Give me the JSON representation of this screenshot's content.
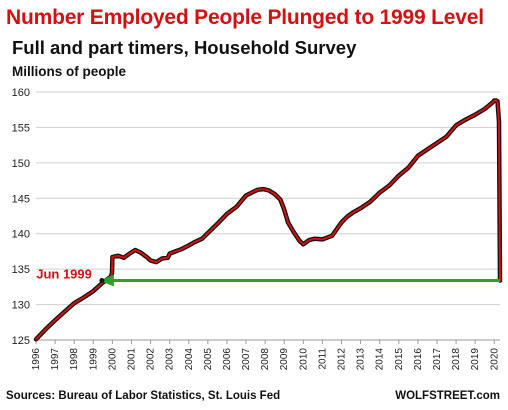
{
  "chart_data": {
    "type": "line",
    "title": "Number Employed People Plunged to 1999 Level",
    "subtitle": "Full and part timers, Household Survey",
    "ylabel": "Millions of people",
    "xlabel": "",
    "ylim": [
      125,
      160
    ],
    "xlim": [
      1996,
      2020.3
    ],
    "yticks": [
      125,
      130,
      135,
      140,
      145,
      150,
      155,
      160
    ],
    "xticks": [
      "1996",
      "1997",
      "1998",
      "1999",
      "2000",
      "2001",
      "2002",
      "2003",
      "2004",
      "2005",
      "2006",
      "2007",
      "2008",
      "2009",
      "2010",
      "2011",
      "2012",
      "2013",
      "2014",
      "2015",
      "2016",
      "2017",
      "2018",
      "2019",
      "2020"
    ],
    "grid": true,
    "series": [
      {
        "color": "#d41010",
        "x": [
          1996.0,
          1996.5,
          1997.0,
          1997.5,
          1998.0,
          1998.5,
          1999.0,
          1999.45,
          1999.9,
          1999.98,
          2000.0,
          2000.3,
          2000.6,
          2000.9,
          2001.2,
          2001.5,
          2001.8,
          2002.0,
          2002.3,
          2002.6,
          2002.9,
          2003.0,
          2003.3,
          2003.6,
          2003.9,
          2004.3,
          2004.7,
          2005.0,
          2005.5,
          2006.0,
          2006.5,
          2007.0,
          2007.3,
          2007.6,
          2007.9,
          2008.2,
          2008.5,
          2008.8,
          2009.0,
          2009.2,
          2009.5,
          2009.8,
          2010.0,
          2010.3,
          2010.6,
          2011.0,
          2011.5,
          2012.0,
          2012.3,
          2012.6,
          2013.0,
          2013.5,
          2014.0,
          2014.5,
          2015.0,
          2015.5,
          2016.0,
          2016.5,
          2017.0,
          2017.5,
          2018.0,
          2018.5,
          2019.0,
          2019.5,
          2019.9,
          2020.0,
          2020.1,
          2020.17,
          2020.25,
          2020.3
        ],
        "values": [
          125.1,
          126.5,
          127.8,
          129.0,
          130.2,
          131.0,
          131.9,
          133.0,
          133.9,
          134.4,
          136.7,
          136.9,
          136.6,
          137.2,
          137.7,
          137.3,
          136.7,
          136.2,
          136.0,
          136.5,
          136.6,
          137.2,
          137.5,
          137.8,
          138.2,
          138.8,
          139.3,
          140.1,
          141.4,
          142.8,
          143.8,
          145.4,
          145.8,
          146.2,
          146.3,
          146.1,
          145.6,
          144.8,
          143.4,
          141.6,
          140.2,
          139.0,
          138.5,
          139.1,
          139.3,
          139.2,
          139.7,
          141.6,
          142.4,
          143.0,
          143.6,
          144.5,
          145.8,
          146.8,
          148.2,
          149.3,
          151.0,
          151.9,
          152.8,
          153.7,
          155.3,
          156.1,
          156.8,
          157.6,
          158.5,
          158.8,
          158.8,
          158.7,
          155.8,
          133.4
        ]
      },
      {
        "color": "#2ca02c",
        "x": [
          1999.45,
          2020.3
        ],
        "values": [
          133.4,
          133.4
        ]
      }
    ],
    "annotations": [
      {
        "text": "Jun 1999",
        "color": "#d41010",
        "x": 1999.45,
        "y": 133.4
      }
    ]
  },
  "footer": {
    "source": "Sources: Bureau of Labor Statistics, St. Louis Fed",
    "brand": "WOLFSTREET.com"
  }
}
